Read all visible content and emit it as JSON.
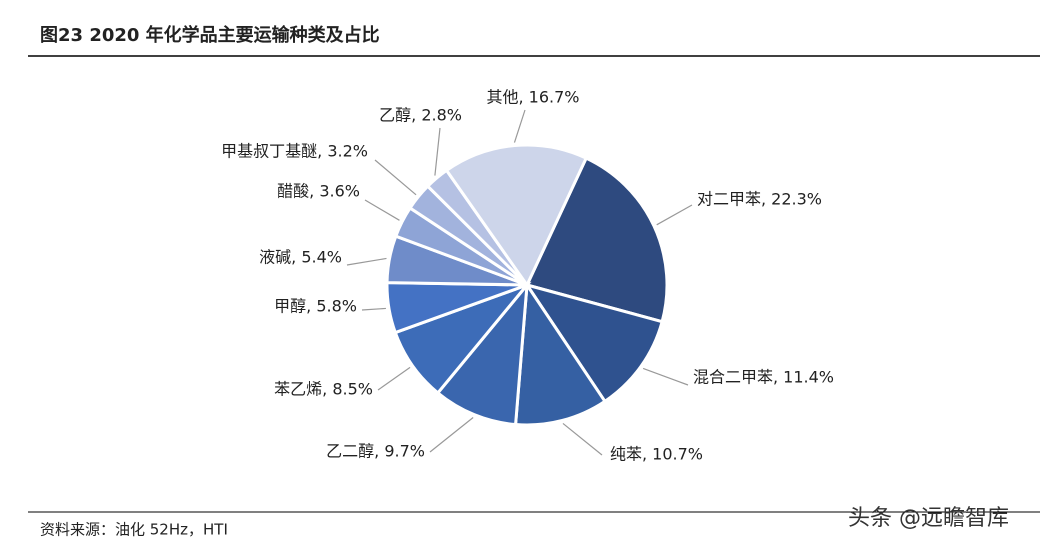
{
  "chart_data": {
    "type": "pie",
    "title": "图23  2020 年化学品主要运输种类及占比",
    "values": [
      22.3,
      11.4,
      10.7,
      9.7,
      8.5,
      5.8,
      5.4,
      3.6,
      3.2,
      2.8,
      16.7
    ],
    "value_labels": [
      "对二甲苯, 22.3%",
      "混合二甲苯, 11.4%",
      "纯苯, 10.7%",
      "乙二醇, 9.7%",
      "苯乙烯, 8.5%",
      "甲醇, 5.8%",
      "液碱, 5.4%",
      "醋酸, 3.6%",
      "甲基叔丁基醚, 3.2%",
      "乙醇, 2.8%",
      "其他, 16.7%"
    ],
    "colors": [
      "#2e4a7f",
      "#2f528f",
      "#3560a3",
      "#3a66ae",
      "#3d6cb8",
      "#4472c4",
      "#6f8cc9",
      "#8ea4d6",
      "#a2b3dd",
      "#b5c1e3",
      "#cdd5ea"
    ],
    "source": "资料来源：油化 52Hz，HTI",
    "watermark": "头条 @远瞻智库"
  }
}
